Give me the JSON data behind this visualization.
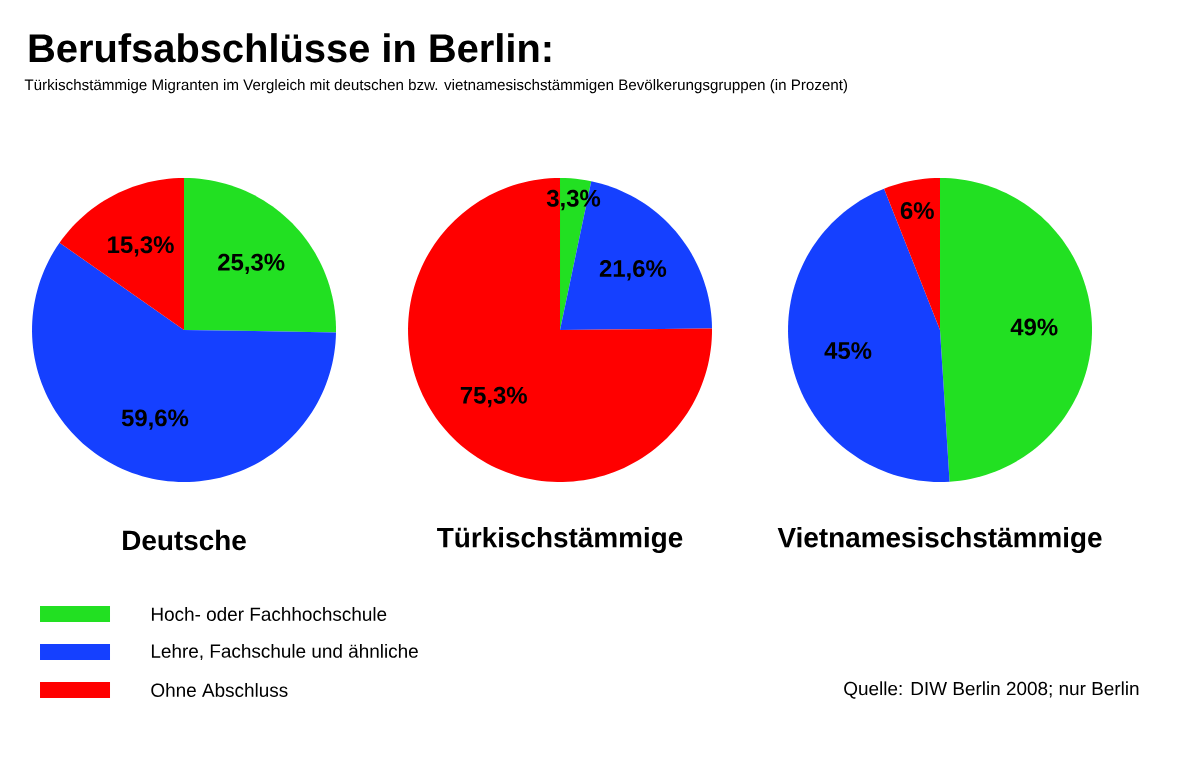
{
  "chart_data": [
    {
      "type": "pie",
      "title": "Berufsabschlüsse in Berlin:",
      "subtitle": "Türkischstämmige Migranten im Vergleich mit deutschen bzw. vietnamesischstämmigen Bevölkerungsgruppen (in Prozent)",
      "xlabel": "Deutsche",
      "categories": [
        "Hoch- oder Fachhochschule",
        "Lehre, Fachschule und ähnliche",
        "Ohne Abschluss"
      ],
      "values": [
        25.3,
        59.6,
        15.3
      ],
      "colors": [
        "#22e022",
        "#1540ff",
        "#ff0000"
      ],
      "value_labels": [
        "25,3%",
        "59,6%",
        "15,3%"
      ],
      "legend": "bottom"
    },
    {
      "type": "pie",
      "xlabel": "Türkischstämmige",
      "values": [
        3.3,
        21.6,
        75.3
      ],
      "colors": [
        "#22e022",
        "#1540ff",
        "#ff0000"
      ],
      "value_labels": [
        "3,3%",
        "21,6%",
        "75,3%"
      ]
    },
    {
      "type": "pie",
      "xlabel": "Vietnamesischstämmige",
      "values": [
        49,
        45,
        6
      ],
      "colors": [
        "#22e022",
        "#1540ff",
        "#ff0000"
      ],
      "value_labels": [
        "49%",
        "45%",
        "6%"
      ],
      "annotations": [
        "Quelle: DIW Berlin 2008; nur Berlin"
      ]
    }
  ]
}
